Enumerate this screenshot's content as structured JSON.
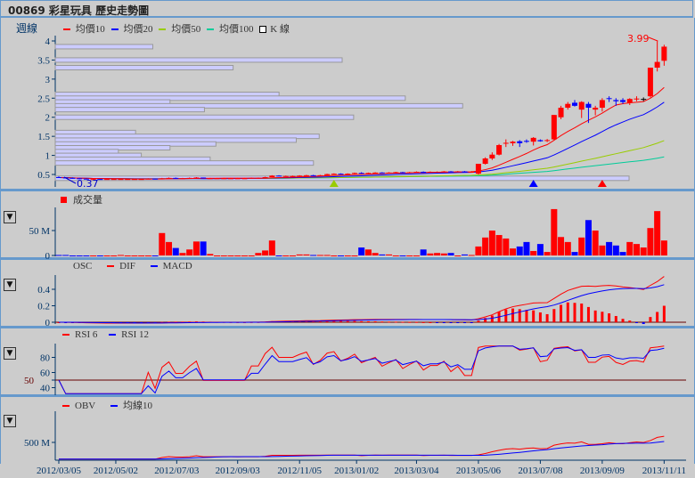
{
  "title": "00869 彩星玩具  歷史走勢圖",
  "colors": {
    "up": "#ff0000",
    "down": "#0000ff",
    "ma10": "#ff0000",
    "ma20": "#0000ff",
    "ma50": "#99cc00",
    "ma100": "#00cc99",
    "axis": "#003366",
    "panel_border": "#6699cc",
    "profile": "#ccccff"
  },
  "price_panel": {
    "period_label": "週線",
    "legend": [
      "均價10",
      "均價20",
      "均價50",
      "均價100",
      "K 線"
    ],
    "y_ticks": [
      "4",
      "3.5",
      "3",
      "2.5",
      "2",
      "1.5",
      "1",
      "0.5"
    ],
    "low_label": "0.37",
    "high_label": "3.99"
  },
  "volume_panel": {
    "legend": "成交量",
    "y_ticks": [
      "50 M",
      "0"
    ]
  },
  "macd_panel": {
    "legend": [
      "OSC",
      "DIF",
      "MACD"
    ],
    "y_ticks": [
      "0.4",
      "0.2",
      "0"
    ]
  },
  "rsi_panel": {
    "legend": [
      "RSI 6",
      "RSI 12"
    ],
    "y_ticks": [
      "80",
      "60",
      "50",
      "40"
    ]
  },
  "obv_panel": {
    "legend": [
      "OBV",
      "均線10"
    ],
    "y_ticks": [
      "500 M"
    ]
  },
  "toggle_icon": "triangle-down-icon",
  "x_labels": [
    "2012/03/05",
    "2012/05/02",
    "2012/07/03",
    "2012/09/03",
    "2012/11/05",
    "2013/01/02",
    "2013/03/04",
    "2013/05/06",
    "2013/07/08",
    "2013/09/09",
    "2013/11/11"
  ],
  "chart_data": [
    {
      "type": "candlestick",
      "title": "週線",
      "ylim": [
        0.3,
        4.1
      ],
      "start_date": "2012/03/05",
      "ohlc": [
        [
          0.43,
          0.45,
          0.41,
          0.42
        ],
        [
          0.42,
          0.43,
          0.4,
          0.41
        ],
        [
          0.41,
          0.42,
          0.39,
          0.4
        ],
        [
          0.4,
          0.41,
          0.38,
          0.39
        ],
        [
          0.39,
          0.4,
          0.37,
          0.38
        ],
        [
          0.38,
          0.39,
          0.37,
          0.38
        ],
        [
          0.38,
          0.38,
          0.37,
          0.37
        ],
        [
          0.37,
          0.39,
          0.37,
          0.38
        ],
        [
          0.38,
          0.39,
          0.37,
          0.38
        ],
        [
          0.38,
          0.39,
          0.37,
          0.38
        ],
        [
          0.38,
          0.39,
          0.37,
          0.38
        ],
        [
          0.38,
          0.39,
          0.37,
          0.38
        ],
        [
          0.38,
          0.39,
          0.37,
          0.38
        ],
        [
          0.38,
          0.4,
          0.38,
          0.39
        ],
        [
          0.39,
          0.39,
          0.37,
          0.38
        ],
        [
          0.38,
          0.41,
          0.38,
          0.4
        ],
        [
          0.4,
          0.42,
          0.39,
          0.41
        ],
        [
          0.41,
          0.42,
          0.39,
          0.4
        ],
        [
          0.4,
          0.41,
          0.39,
          0.4
        ],
        [
          0.4,
          0.42,
          0.4,
          0.41
        ],
        [
          0.41,
          0.43,
          0.4,
          0.42
        ],
        [
          0.42,
          0.42,
          0.4,
          0.4
        ],
        [
          0.4,
          0.41,
          0.39,
          0.4
        ],
        [
          0.4,
          0.41,
          0.39,
          0.4
        ],
        [
          0.4,
          0.41,
          0.39,
          0.4
        ],
        [
          0.4,
          0.41,
          0.39,
          0.4
        ],
        [
          0.4,
          0.41,
          0.39,
          0.4
        ],
        [
          0.4,
          0.41,
          0.39,
          0.4
        ],
        [
          0.4,
          0.42,
          0.4,
          0.41
        ],
        [
          0.41,
          0.42,
          0.4,
          0.41
        ],
        [
          0.41,
          0.44,
          0.41,
          0.43
        ],
        [
          0.43,
          0.48,
          0.43,
          0.47
        ],
        [
          0.47,
          0.48,
          0.46,
          0.46
        ],
        [
          0.46,
          0.47,
          0.45,
          0.46
        ],
        [
          0.46,
          0.47,
          0.45,
          0.46
        ],
        [
          0.46,
          0.48,
          0.45,
          0.47
        ],
        [
          0.47,
          0.49,
          0.46,
          0.48
        ],
        [
          0.48,
          0.49,
          0.46,
          0.47
        ],
        [
          0.47,
          0.49,
          0.46,
          0.48
        ],
        [
          0.48,
          0.52,
          0.48,
          0.51
        ],
        [
          0.51,
          0.53,
          0.5,
          0.52
        ],
        [
          0.52,
          0.53,
          0.5,
          0.51
        ],
        [
          0.51,
          0.53,
          0.5,
          0.52
        ],
        [
          0.52,
          0.55,
          0.51,
          0.54
        ],
        [
          0.54,
          0.56,
          0.52,
          0.53
        ],
        [
          0.53,
          0.55,
          0.52,
          0.54
        ],
        [
          0.54,
          0.56,
          0.53,
          0.55
        ],
        [
          0.55,
          0.56,
          0.53,
          0.54
        ],
        [
          0.54,
          0.56,
          0.53,
          0.55
        ],
        [
          0.55,
          0.57,
          0.54,
          0.56
        ],
        [
          0.56,
          0.57,
          0.54,
          0.55
        ],
        [
          0.55,
          0.57,
          0.54,
          0.56
        ],
        [
          0.56,
          0.58,
          0.55,
          0.57
        ],
        [
          0.57,
          0.58,
          0.55,
          0.56
        ],
        [
          0.56,
          0.58,
          0.55,
          0.57
        ],
        [
          0.57,
          0.58,
          0.56,
          0.57
        ],
        [
          0.57,
          0.59,
          0.56,
          0.58
        ],
        [
          0.58,
          0.59,
          0.56,
          0.57
        ],
        [
          0.57,
          0.59,
          0.56,
          0.58
        ],
        [
          0.58,
          0.59,
          0.57,
          0.57
        ],
        [
          0.57,
          0.59,
          0.56,
          0.57
        ],
        [
          0.52,
          0.78,
          0.5,
          0.78
        ],
        [
          0.78,
          0.95,
          0.76,
          0.92
        ],
        [
          0.92,
          1.08,
          0.88,
          1.02
        ],
        [
          1.02,
          1.3,
          1.0,
          1.27
        ],
        [
          1.31,
          1.42,
          1.22,
          1.33
        ],
        [
          1.32,
          1.38,
          1.25,
          1.36
        ],
        [
          1.37,
          1.4,
          1.22,
          1.32
        ],
        [
          1.38,
          1.42,
          1.33,
          1.37
        ],
        [
          1.36,
          1.48,
          1.26,
          1.46
        ],
        [
          1.4,
          1.42,
          1.36,
          1.37
        ],
        [
          1.38,
          1.43,
          1.35,
          1.4
        ],
        [
          1.42,
          2.06,
          1.4,
          2.06
        ],
        [
          2.0,
          2.3,
          1.95,
          2.25
        ],
        [
          2.25,
          2.4,
          2.2,
          2.35
        ],
        [
          2.38,
          2.45,
          2.28,
          2.3
        ],
        [
          2.2,
          2.42,
          1.98,
          2.4
        ],
        [
          2.35,
          2.4,
          1.85,
          2.25
        ],
        [
          2.2,
          2.3,
          2.05,
          2.25
        ],
        [
          2.25,
          2.5,
          2.15,
          2.45
        ],
        [
          2.5,
          2.55,
          2.4,
          2.48
        ],
        [
          2.45,
          2.5,
          2.3,
          2.42
        ],
        [
          2.45,
          2.5,
          2.35,
          2.4
        ],
        [
          2.38,
          2.5,
          2.32,
          2.48
        ],
        [
          2.48,
          2.55,
          2.42,
          2.49
        ],
        [
          2.48,
          2.52,
          2.42,
          2.48
        ],
        [
          2.55,
          3.3,
          2.52,
          3.3
        ],
        [
          3.3,
          3.99,
          3.2,
          3.45
        ],
        [
          3.48,
          3.9,
          3.35,
          3.85
        ]
      ],
      "moving_averages": [
        10,
        20,
        50,
        100
      ],
      "volume_profile": [
        {
          "price": 3.85,
          "share": 0.17
        },
        {
          "price": 3.5,
          "share": 0.5
        },
        {
          "price": 3.3,
          "share": 0.31
        },
        {
          "price": 2.6,
          "share": 0.39
        },
        {
          "price": 2.5,
          "share": 0.61
        },
        {
          "price": 2.4,
          "share": 0.2
        },
        {
          "price": 2.3,
          "share": 0.71
        },
        {
          "price": 2.2,
          "share": 0.26
        },
        {
          "price": 2.0,
          "share": 0.52
        },
        {
          "price": 1.6,
          "share": 0.14
        },
        {
          "price": 1.5,
          "share": 0.46
        },
        {
          "price": 1.4,
          "share": 0.42
        },
        {
          "price": 1.3,
          "share": 0.28
        },
        {
          "price": 1.2,
          "share": 0.2
        },
        {
          "price": 1.1,
          "share": 0.11
        },
        {
          "price": 1.0,
          "share": 0.15
        },
        {
          "price": 0.9,
          "share": 0.27
        },
        {
          "price": 0.8,
          "share": 0.45
        },
        {
          "price": 0.4,
          "share": 1.0
        }
      ],
      "markers": [
        {
          "week": 40,
          "color": "#99cc00"
        },
        {
          "week": 69,
          "color": "#0000ff"
        },
        {
          "week": 79,
          "color": "#ff0000"
        }
      ],
      "low": 0.37,
      "high": 3.99
    },
    {
      "type": "bar",
      "title": "成交量",
      "unit": "M",
      "ylim": [
        0,
        95
      ],
      "values": [
        1,
        1,
        0,
        0,
        0,
        0,
        0,
        0,
        0,
        1,
        0,
        0,
        0,
        0,
        0,
        45,
        27,
        15,
        5,
        12,
        28,
        28,
        3,
        0,
        0,
        0,
        0,
        0,
        0,
        5,
        10,
        30,
        0,
        0,
        0,
        2,
        2,
        1,
        1,
        1,
        0,
        0,
        0,
        0,
        16,
        12,
        5,
        2,
        2,
        0,
        0,
        0,
        0,
        12,
        4,
        5,
        4,
        5,
        0,
        2,
        1,
        18,
        36,
        50,
        41,
        34,
        14,
        18,
        27,
        9,
        23,
        7,
        93,
        37,
        27,
        7,
        36,
        71,
        50,
        20,
        27,
        20,
        7,
        27,
        23,
        16,
        55,
        89,
        30
      ]
    },
    {
      "type": "line",
      "series": [
        {
          "name": "OSC"
        },
        {
          "name": "DIF"
        },
        {
          "name": "MACD"
        }
      ],
      "ylim": [
        -0.05,
        0.55
      ]
    },
    {
      "type": "line",
      "series": [
        {
          "name": "RSI 6"
        },
        {
          "name": "RSI 12"
        }
      ],
      "ylim": [
        30,
        95
      ],
      "reference": 50
    },
    {
      "type": "line",
      "series": [
        {
          "name": "OBV"
        },
        {
          "name": "均線10"
        }
      ],
      "unit": "M"
    }
  ]
}
